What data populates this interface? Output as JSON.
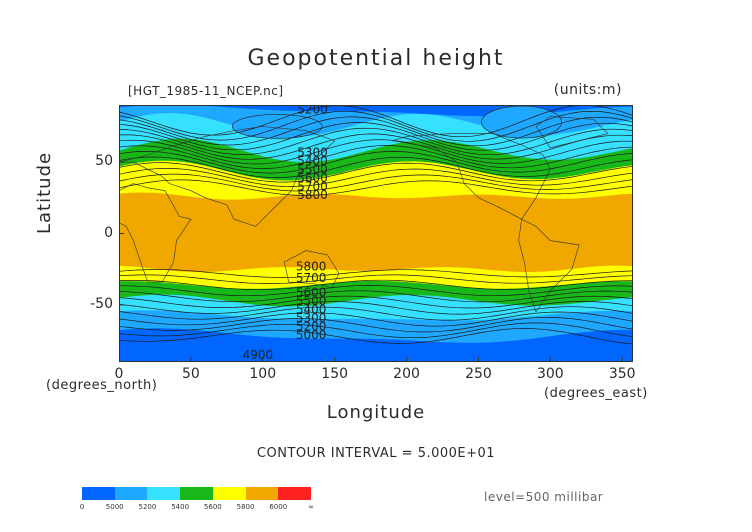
{
  "page": {
    "title": "Geopotential height",
    "file": "[HGT_1985-11_NCEP.nc]",
    "units": "(units:m)",
    "ylabel": "Latitude",
    "xlabel": "Longitude",
    "xunit_left": "(degrees_north)",
    "xunit_right": "(degrees_east)",
    "contour_interval": "CONTOUR INTERVAL = 5.000E+01",
    "level": "level=500 millibar"
  },
  "chart_data": {
    "type": "heatmap",
    "title": "Geopotential height",
    "xlabel": "Longitude",
    "ylabel": "Latitude",
    "xlim": [
      0,
      357.5
    ],
    "ylim": [
      -90,
      90
    ],
    "xticks": [
      0,
      50,
      100,
      150,
      200,
      250,
      300,
      350
    ],
    "yticks": [
      50,
      0,
      -50
    ],
    "units": "m",
    "level": "500 millibar",
    "contour_interval": 50,
    "colorbar": {
      "labels": [
        "0",
        "5000",
        "5200",
        "5400",
        "5600",
        "5800",
        "6000",
        "∞"
      ],
      "colors": [
        "#0066ff",
        "#1ea8ff",
        "#36e0ff",
        "#18b818",
        "#ffff00",
        "#f0a800",
        "#ff2020"
      ],
      "boundaries": [
        0,
        5000,
        5200,
        5400,
        5600,
        5800,
        6000,
        99999
      ]
    },
    "contour_labels": [
      {
        "text": "5200",
        "x": 124,
        "y": 84
      },
      {
        "text": "5300",
        "x": 124,
        "y": 54
      },
      {
        "text": "5400",
        "x": 124,
        "y": 48
      },
      {
        "text": "5500",
        "x": 124,
        "y": 42
      },
      {
        "text": "5600",
        "x": 124,
        "y": 36
      },
      {
        "text": "5700",
        "x": 124,
        "y": 30
      },
      {
        "text": "5800",
        "x": 124,
        "y": 24
      },
      {
        "text": "5800",
        "x": 123,
        "y": -26
      },
      {
        "text": "5700",
        "x": 123,
        "y": -34
      },
      {
        "text": "5600",
        "x": 123,
        "y": -44
      },
      {
        "text": "5500",
        "x": 123,
        "y": -50
      },
      {
        "text": "5400",
        "x": 123,
        "y": -56
      },
      {
        "text": "5300",
        "x": 123,
        "y": -62
      },
      {
        "text": "5200",
        "x": 123,
        "y": -68
      },
      {
        "text": "5000",
        "x": 123,
        "y": -74
      },
      {
        "text": "4900",
        "x": 86,
        "y": -88
      }
    ],
    "band_latitudes": [
      {
        "value": 5200,
        "n_lat": 80,
        "s_lat": -70
      },
      {
        "value": 5400,
        "n_lat": 62,
        "s_lat": -52
      },
      {
        "value": 5600,
        "n_lat": 48,
        "s_lat": -42
      },
      {
        "value": 5800,
        "n_lat": 30,
        "s_lat": -27
      }
    ]
  }
}
